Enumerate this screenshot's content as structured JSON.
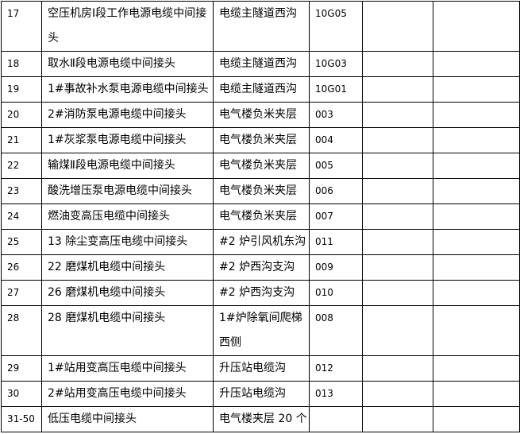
{
  "rows": [
    {
      "no": "17",
      "name": "空压机房Ⅰ段工作电源电缆中间接头",
      "location": "电缆主隧道西沟",
      "code": "10G05",
      "c5": "",
      "c6": ""
    },
    {
      "no": "18",
      "name": "取水Ⅱ段电源电缆中间接头",
      "location": "电缆主隧道西沟",
      "code": "10G03",
      "c5": "",
      "c6": ""
    },
    {
      "no": "19",
      "name": "1#事故补水泵电源电缆中间接头",
      "location": "电缆主隧道西沟",
      "code": "10G01",
      "c5": "",
      "c6": ""
    },
    {
      "no": "20",
      "name": "2#消防泵电源电缆中间接头",
      "location": "电气楼负米夹层",
      "code": "003",
      "c5": "",
      "c6": ""
    },
    {
      "no": "21",
      "name": "1#灰浆泵电源电缆中间接头",
      "location": "电气楼负米夹层",
      "code": "004",
      "c5": "",
      "c6": ""
    },
    {
      "no": "22",
      "name": "输煤Ⅱ段电源电缆中间接头",
      "location": "电气楼负米夹层",
      "code": "005",
      "c5": "",
      "c6": ""
    },
    {
      "no": "23",
      "name": "酸洗增压泵电源电缆中间接头",
      "location": "电气楼负米夹层",
      "code": "006",
      "c5": "",
      "c6": ""
    },
    {
      "no": "24",
      "name": "燃油变高压电缆中间接头",
      "location": "电气楼负米夹层",
      "code": "007",
      "c5": "",
      "c6": ""
    },
    {
      "no": "25",
      "name": "13 除尘变高压电缆中间接头",
      "location": "#2 炉引风机东沟",
      "code": "011",
      "c5": "",
      "c6": ""
    },
    {
      "no": "26",
      "name": "22 磨煤机电缆中间接头",
      "location": "#2 炉西沟支沟",
      "code": "009",
      "c5": "",
      "c6": ""
    },
    {
      "no": "27",
      "name": "26 磨煤机电缆中间接头",
      "location": "#2 炉西沟支沟",
      "code": "010",
      "c5": "",
      "c6": ""
    },
    {
      "no": "28",
      "name": "28 磨煤机电缆中间接头",
      "location": "1#炉除氧间爬梯西侧",
      "code": "008",
      "c5": "",
      "c6": ""
    },
    {
      "no": "29",
      "name": "1#站用变高压电缆中间接头",
      "location": "升压站电缆沟",
      "code": "012",
      "c5": "",
      "c6": ""
    },
    {
      "no": "30",
      "name": "2#站用变高压电缆中间接头",
      "location": "升压站电缆沟",
      "code": "013",
      "c5": "",
      "c6": ""
    },
    {
      "no": "31-50",
      "name": "低压电缆中间接头",
      "location": "电气楼夹层 20 个",
      "code": "",
      "c5": "",
      "c6": ""
    }
  ]
}
